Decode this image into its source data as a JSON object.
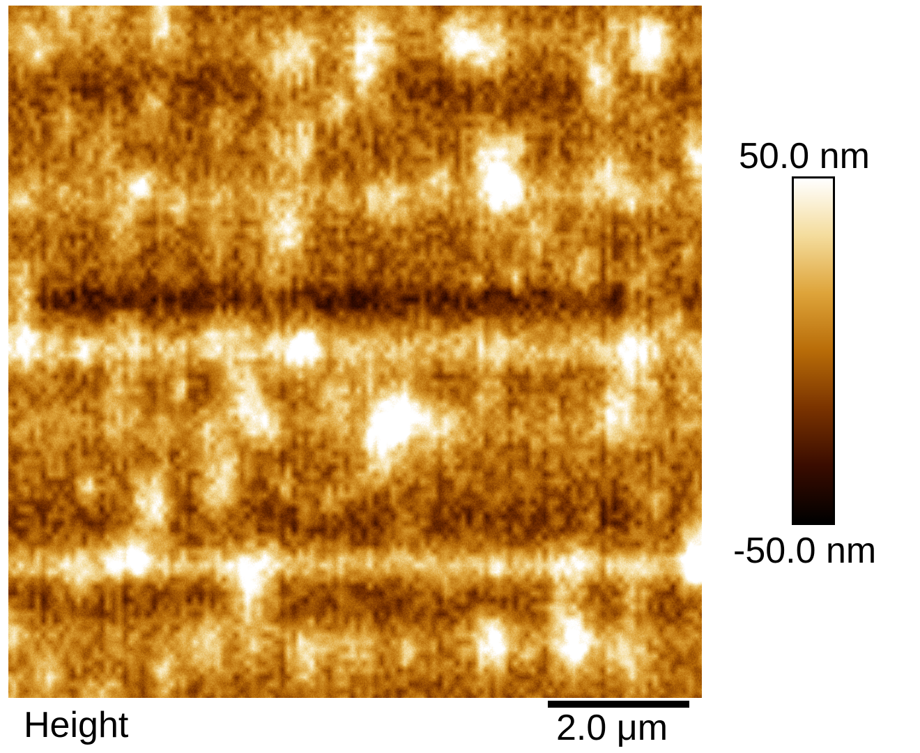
{
  "image": {
    "channel": "Height",
    "colormap": [
      "#000000",
      "#3a0c00",
      "#7a3300",
      "#b86c08",
      "#dea43a",
      "#f4dc9c",
      "#ffffff"
    ],
    "range_max_label": "50.0 nm",
    "range_min_label": "-50.0 nm",
    "scale_bar_label": "2.0 μm"
  }
}
